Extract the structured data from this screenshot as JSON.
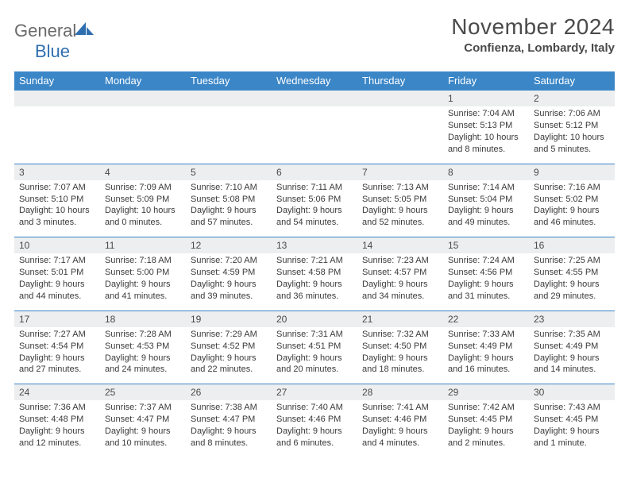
{
  "brand": {
    "name_a": "General",
    "name_b": "Blue"
  },
  "title": "November 2024",
  "location": "Confienza, Lombardy, Italy",
  "colors": {
    "header_bg": "#3b86c7",
    "header_fg": "#ffffff",
    "daynum_bg": "#eceeef",
    "text": "#3a3a3a",
    "rule": "#3b86c7",
    "brand_gray": "#6a6a6a",
    "brand_blue": "#2f6fb0"
  },
  "weekdays": [
    "Sunday",
    "Monday",
    "Tuesday",
    "Wednesday",
    "Thursday",
    "Friday",
    "Saturday"
  ],
  "layout": {
    "columns": 7,
    "rows": 5,
    "first_weekday_index": 5
  },
  "days": [
    {
      "n": 1,
      "sunrise": "7:04 AM",
      "sunset": "5:13 PM",
      "daylight": "10 hours and 8 minutes."
    },
    {
      "n": 2,
      "sunrise": "7:06 AM",
      "sunset": "5:12 PM",
      "daylight": "10 hours and 5 minutes."
    },
    {
      "n": 3,
      "sunrise": "7:07 AM",
      "sunset": "5:10 PM",
      "daylight": "10 hours and 3 minutes."
    },
    {
      "n": 4,
      "sunrise": "7:09 AM",
      "sunset": "5:09 PM",
      "daylight": "10 hours and 0 minutes."
    },
    {
      "n": 5,
      "sunrise": "7:10 AM",
      "sunset": "5:08 PM",
      "daylight": "9 hours and 57 minutes."
    },
    {
      "n": 6,
      "sunrise": "7:11 AM",
      "sunset": "5:06 PM",
      "daylight": "9 hours and 54 minutes."
    },
    {
      "n": 7,
      "sunrise": "7:13 AM",
      "sunset": "5:05 PM",
      "daylight": "9 hours and 52 minutes."
    },
    {
      "n": 8,
      "sunrise": "7:14 AM",
      "sunset": "5:04 PM",
      "daylight": "9 hours and 49 minutes."
    },
    {
      "n": 9,
      "sunrise": "7:16 AM",
      "sunset": "5:02 PM",
      "daylight": "9 hours and 46 minutes."
    },
    {
      "n": 10,
      "sunrise": "7:17 AM",
      "sunset": "5:01 PM",
      "daylight": "9 hours and 44 minutes."
    },
    {
      "n": 11,
      "sunrise": "7:18 AM",
      "sunset": "5:00 PM",
      "daylight": "9 hours and 41 minutes."
    },
    {
      "n": 12,
      "sunrise": "7:20 AM",
      "sunset": "4:59 PM",
      "daylight": "9 hours and 39 minutes."
    },
    {
      "n": 13,
      "sunrise": "7:21 AM",
      "sunset": "4:58 PM",
      "daylight": "9 hours and 36 minutes."
    },
    {
      "n": 14,
      "sunrise": "7:23 AM",
      "sunset": "4:57 PM",
      "daylight": "9 hours and 34 minutes."
    },
    {
      "n": 15,
      "sunrise": "7:24 AM",
      "sunset": "4:56 PM",
      "daylight": "9 hours and 31 minutes."
    },
    {
      "n": 16,
      "sunrise": "7:25 AM",
      "sunset": "4:55 PM",
      "daylight": "9 hours and 29 minutes."
    },
    {
      "n": 17,
      "sunrise": "7:27 AM",
      "sunset": "4:54 PM",
      "daylight": "9 hours and 27 minutes."
    },
    {
      "n": 18,
      "sunrise": "7:28 AM",
      "sunset": "4:53 PM",
      "daylight": "9 hours and 24 minutes."
    },
    {
      "n": 19,
      "sunrise": "7:29 AM",
      "sunset": "4:52 PM",
      "daylight": "9 hours and 22 minutes."
    },
    {
      "n": 20,
      "sunrise": "7:31 AM",
      "sunset": "4:51 PM",
      "daylight": "9 hours and 20 minutes."
    },
    {
      "n": 21,
      "sunrise": "7:32 AM",
      "sunset": "4:50 PM",
      "daylight": "9 hours and 18 minutes."
    },
    {
      "n": 22,
      "sunrise": "7:33 AM",
      "sunset": "4:49 PM",
      "daylight": "9 hours and 16 minutes."
    },
    {
      "n": 23,
      "sunrise": "7:35 AM",
      "sunset": "4:49 PM",
      "daylight": "9 hours and 14 minutes."
    },
    {
      "n": 24,
      "sunrise": "7:36 AM",
      "sunset": "4:48 PM",
      "daylight": "9 hours and 12 minutes."
    },
    {
      "n": 25,
      "sunrise": "7:37 AM",
      "sunset": "4:47 PM",
      "daylight": "9 hours and 10 minutes."
    },
    {
      "n": 26,
      "sunrise": "7:38 AM",
      "sunset": "4:47 PM",
      "daylight": "9 hours and 8 minutes."
    },
    {
      "n": 27,
      "sunrise": "7:40 AM",
      "sunset": "4:46 PM",
      "daylight": "9 hours and 6 minutes."
    },
    {
      "n": 28,
      "sunrise": "7:41 AM",
      "sunset": "4:46 PM",
      "daylight": "9 hours and 4 minutes."
    },
    {
      "n": 29,
      "sunrise": "7:42 AM",
      "sunset": "4:45 PM",
      "daylight": "9 hours and 2 minutes."
    },
    {
      "n": 30,
      "sunrise": "7:43 AM",
      "sunset": "4:45 PM",
      "daylight": "9 hours and 1 minute."
    }
  ],
  "labels": {
    "sunrise": "Sunrise:",
    "sunset": "Sunset:",
    "daylight": "Daylight:"
  }
}
